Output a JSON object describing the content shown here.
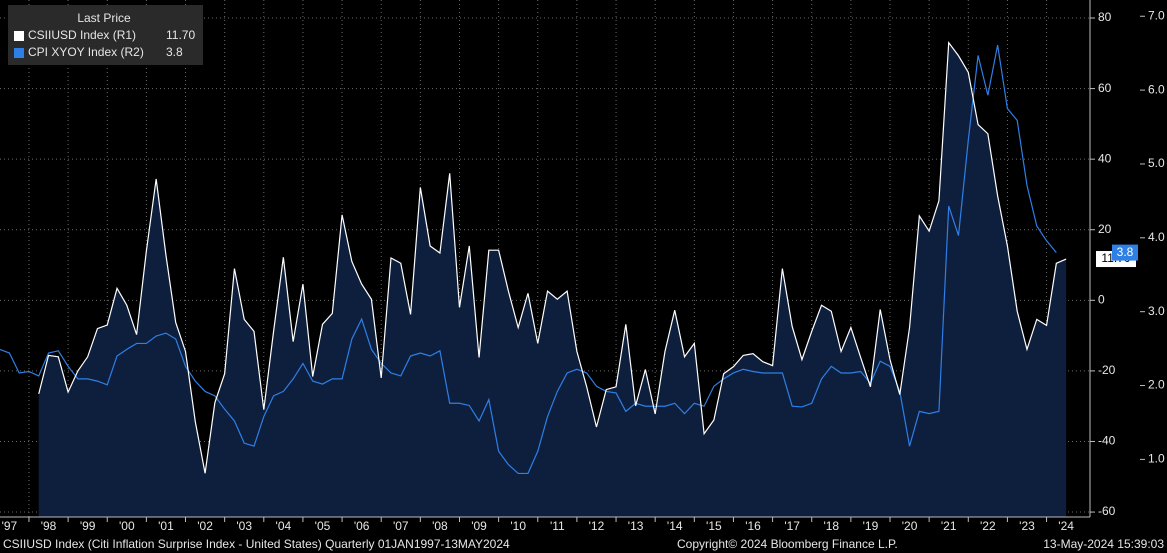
{
  "chart_data": {
    "type": "line",
    "legend_title": "Last Price",
    "footer_left": "CSIIUSD Index (Citi Inflation Surprise Index - United States)  Quarterly 01JAN1997-13MAY2024",
    "footer_center": "Copyright© 2024 Bloomberg Finance L.P.",
    "footer_right": "13-May-2024 15:39:03",
    "xlim": [
      1997.26,
      2025.11
    ],
    "xticks": [
      {
        "value": 1997,
        "label": "'97"
      },
      {
        "value": 1998,
        "label": "'98"
      },
      {
        "value": 1999,
        "label": "'99"
      },
      {
        "value": 2000,
        "label": "'00"
      },
      {
        "value": 2001,
        "label": "'01"
      },
      {
        "value": 2002,
        "label": "'02"
      },
      {
        "value": 2003,
        "label": "'03"
      },
      {
        "value": 2004,
        "label": "'04"
      },
      {
        "value": 2005,
        "label": "'05"
      },
      {
        "value": 2006,
        "label": "'06"
      },
      {
        "value": 2007,
        "label": "'07"
      },
      {
        "value": 2008,
        "label": "'08"
      },
      {
        "value": 2009,
        "label": "'09"
      },
      {
        "value": 2010,
        "label": "'10"
      },
      {
        "value": 2011,
        "label": "'11"
      },
      {
        "value": 2012,
        "label": "'12"
      },
      {
        "value": 2013,
        "label": "'13"
      },
      {
        "value": 2014,
        "label": "'14"
      },
      {
        "value": 2015,
        "label": "'15"
      },
      {
        "value": 2016,
        "label": "'16"
      },
      {
        "value": 2017,
        "label": "'17"
      },
      {
        "value": 2018,
        "label": "'18"
      },
      {
        "value": 2019,
        "label": "'19"
      },
      {
        "value": 2020,
        "label": "'20"
      },
      {
        "value": 2021,
        "label": "'21"
      },
      {
        "value": 2022,
        "label": "'22"
      },
      {
        "value": 2023,
        "label": "'23"
      },
      {
        "value": 2024,
        "label": "'24"
      }
    ],
    "ylim": [
      -61.4,
      85.1
    ],
    "yticks": [
      -60,
      -40,
      -20,
      0,
      20,
      40,
      60,
      80
    ],
    "y2lim": [
      0.22,
      7.22
    ],
    "y2ticks": [
      {
        "value": 1,
        "label": "1.0"
      },
      {
        "value": 2,
        "label": "2.0"
      },
      {
        "value": 3,
        "label": "3.0"
      },
      {
        "value": 4,
        "label": "4.0"
      },
      {
        "value": 5,
        "label": "5.0"
      },
      {
        "value": 6,
        "label": "6.0"
      },
      {
        "value": 7,
        "label": "7.0"
      }
    ],
    "grid": true,
    "series": [
      {
        "name": "CSIIUSD Index  (R1)",
        "color": "#ffffff",
        "fill": "#0e1f3d",
        "last_label": "11.70",
        "x": [
          1998.25,
          1998.5,
          1998.75,
          1999,
          1999.25,
          1999.5,
          1999.75,
          2000,
          2000.25,
          2000.5,
          2000.75,
          2001,
          2001.25,
          2001.5,
          2001.75,
          2002,
          2002.25,
          2002.5,
          2002.75,
          2003,
          2003.25,
          2003.5,
          2003.75,
          2004,
          2004.25,
          2004.5,
          2004.75,
          2005,
          2005.25,
          2005.5,
          2005.75,
          2006,
          2006.25,
          2006.5,
          2006.75,
          2007,
          2007.25,
          2007.5,
          2007.75,
          2008,
          2008.25,
          2008.5,
          2008.75,
          2009,
          2009.25,
          2009.5,
          2009.75,
          2010,
          2010.25,
          2010.5,
          2010.75,
          2011,
          2011.25,
          2011.5,
          2011.75,
          2012,
          2012.25,
          2012.5,
          2012.75,
          2013,
          2013.25,
          2013.5,
          2013.75,
          2014,
          2014.25,
          2014.5,
          2014.75,
          2015,
          2015.25,
          2015.5,
          2015.75,
          2016,
          2016.25,
          2016.5,
          2016.75,
          2017,
          2017.25,
          2017.5,
          2017.75,
          2018,
          2018.25,
          2018.5,
          2018.75,
          2019,
          2019.25,
          2019.5,
          2019.75,
          2020,
          2020.25,
          2020.5,
          2020.75,
          2021,
          2021.25,
          2021.5,
          2021.75,
          2022,
          2022.25,
          2022.5,
          2022.75,
          2023,
          2023.25,
          2023.5,
          2023.75,
          2024,
          2024.25,
          2024.5
        ],
        "values": [
          -26.5,
          -15.6,
          -16,
          -26,
          -20,
          -16,
          -8,
          -7,
          3.4,
          -1.4,
          -9.7,
          14,
          34.4,
          12.8,
          -6.3,
          -14.5,
          -34.4,
          -49,
          -29,
          -20.8,
          9,
          -5.4,
          -8.8,
          -31,
          -8.8,
          12.2,
          -11.7,
          4.6,
          -21.6,
          -6.8,
          -3.7,
          24.2,
          11,
          4.6,
          0.3,
          -22,
          12,
          10.5,
          -4,
          32,
          15.4,
          13.4,
          36,
          -2,
          15.4,
          -16.2,
          14.2,
          14.2,
          2.6,
          -7.7,
          2,
          -12.2,
          2.6,
          0.3,
          2.6,
          -14.5,
          -24.5,
          -35.9,
          -25.3,
          -24.5,
          -6.8,
          -29.9,
          -19.6,
          -32.2,
          -14.5,
          -2.8,
          -16,
          -12.2,
          -37.8,
          -33.9,
          -20.8,
          -18.8,
          -15.6,
          -15.1,
          -17.4,
          -18.5,
          9,
          -7.4,
          -16.8,
          -8.8,
          -1.4,
          -3.1,
          -14.5,
          -7.7,
          -16.2,
          -24.5,
          -2.6,
          -16.8,
          -26.7,
          -7.7,
          23.9,
          19.6,
          28.2,
          73,
          69.3,
          64.6,
          49.8,
          47.2,
          29.6,
          15.4,
          -3.1,
          -13.9,
          -5.4,
          -7.1,
          10.5,
          11.7
        ]
      },
      {
        "name": "CPI XYOY Index  (R2)",
        "color": "#2e7fe6",
        "axis": "y2",
        "x": [
          1997.25,
          1997.5,
          1997.75,
          1998,
          1998.25,
          1998.5,
          1998.75,
          1999,
          1999.25,
          1999.5,
          1999.75,
          2000,
          2000.25,
          2000.5,
          2000.75,
          2001,
          2001.25,
          2001.5,
          2001.75,
          2002,
          2002.25,
          2002.5,
          2002.75,
          2003,
          2003.25,
          2003.5,
          2003.75,
          2004,
          2004.25,
          2004.5,
          2004.75,
          2005,
          2005.25,
          2005.5,
          2005.75,
          2006,
          2006.25,
          2006.5,
          2006.75,
          2007,
          2007.25,
          2007.5,
          2007.75,
          2008,
          2008.25,
          2008.5,
          2008.75,
          2009,
          2009.25,
          2009.5,
          2009.75,
          2010,
          2010.25,
          2010.5,
          2010.75,
          2011,
          2011.25,
          2011.5,
          2011.75,
          2012,
          2012.25,
          2012.5,
          2012.75,
          2013,
          2013.25,
          2013.5,
          2013.75,
          2014,
          2014.25,
          2014.5,
          2014.75,
          2015,
          2015.25,
          2015.5,
          2015.75,
          2016,
          2016.25,
          2016.5,
          2016.75,
          2017,
          2017.25,
          2017.5,
          2017.75,
          2018,
          2018.25,
          2018.5,
          2018.75,
          2019,
          2019.25,
          2019.5,
          2019.75,
          2020,
          2020.25,
          2020.5,
          2020.75,
          2021,
          2021.25,
          2021.5,
          2021.75,
          2022,
          2022.25,
          2022.5,
          2022.75,
          2023,
          2023.25,
          2023.5,
          2023.75,
          2024,
          2024.25
        ],
        "values": [
          2.49,
          2.44,
          2.17,
          2.19,
          2.13,
          2.44,
          2.47,
          2.26,
          2.09,
          2.09,
          2.06,
          2.01,
          2.4,
          2.49,
          2.57,
          2.57,
          2.67,
          2.71,
          2.63,
          2.26,
          2.06,
          1.92,
          1.86,
          1.68,
          1.52,
          1.22,
          1.18,
          1.58,
          1.86,
          1.92,
          2.09,
          2.3,
          2.06,
          2.02,
          2.09,
          2.09,
          2.63,
          2.9,
          2.49,
          2.3,
          2.17,
          2.13,
          2.4,
          2.44,
          2.4,
          2.47,
          1.76,
          1.76,
          1.73,
          1.52,
          1.81,
          1.11,
          0.93,
          0.81,
          0.81,
          1.11,
          1.58,
          1.92,
          2.17,
          2.22,
          2.17,
          1.99,
          1.92,
          1.9,
          1.65,
          1.76,
          1.72,
          1.72,
          1.72,
          1.76,
          1.62,
          1.76,
          1.72,
          1.99,
          2.09,
          2.17,
          2.22,
          2.19,
          2.17,
          2.17,
          2.17,
          1.72,
          1.71,
          1.76,
          2.09,
          2.26,
          2.17,
          2.17,
          2.19,
          2.03,
          2.33,
          2.26,
          1.92,
          1.18,
          1.65,
          1.62,
          1.65,
          4.43,
          4.03,
          5.32,
          6.47,
          5.93,
          6.61,
          5.75,
          5.59,
          4.71,
          4.16,
          3.96,
          3.8
        ]
      }
    ]
  }
}
